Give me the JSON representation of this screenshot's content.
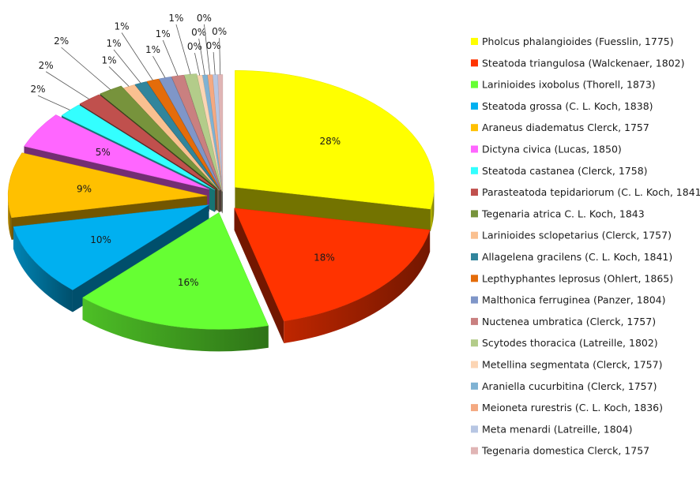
{
  "chart_data": {
    "type": "pie",
    "title": "",
    "legend_position": "right",
    "series": [
      {
        "name": "Pholcus phalangioides  (Fuesslin, 1775)",
        "value": 28,
        "label": "28%",
        "color": "#ffff00"
      },
      {
        "name": "Steatoda triangulosa (Walckenaer, 1802)",
        "value": 18,
        "label": "18%",
        "color": "#ff3300"
      },
      {
        "name": "Larinioides ixobolus (Thorell, 1873)",
        "value": 16,
        "label": "16%",
        "color": "#66ff33"
      },
      {
        "name": "Steatoda grossa (C. L. Koch, 1838)",
        "value": 10,
        "label": "10%",
        "color": "#00b0f0"
      },
      {
        "name": "Araneus diadematus  Clerck, 1757",
        "value": 9,
        "label": "9%",
        "color": "#ffc000"
      },
      {
        "name": "Dictyna civica (Lucas, 1850)",
        "value": 5,
        "label": "5%",
        "color": "#ff66ff"
      },
      {
        "name": "Steatoda castanea (Clerck, 1758)",
        "value": 2,
        "label": "2%",
        "color": "#33ffff"
      },
      {
        "name": "Parasteatoda tepidariorum (C. L. Koch, 1841)",
        "value": 2,
        "label": "2%",
        "color": "#c0504d"
      },
      {
        "name": "Tegenaria atrica C. L. Koch, 1843",
        "value": 2,
        "label": "2%",
        "color": "#77933c"
      },
      {
        "name": "Larinioides sclopetarius (Clerck, 1757)",
        "value": 1,
        "label": "1%",
        "color": "#fac090"
      },
      {
        "name": "Allagelena gracilens (C. L. Koch, 1841)",
        "value": 1,
        "label": "1%",
        "color": "#31859c"
      },
      {
        "name": "Lepthyphantes leprosus (Ohlert, 1865)",
        "value": 1,
        "label": "1%",
        "color": "#e46c0a"
      },
      {
        "name": "Malthonica ferruginea (Panzer, 1804)",
        "value": 1,
        "label": "1%",
        "color": "#7f96c8"
      },
      {
        "name": "Nuctenea umbratica (Clerck, 1757)",
        "value": 1,
        "label": "1%",
        "color": "#c98080"
      },
      {
        "name": "Scytodes thoracica (Latreille, 1802)",
        "value": 1,
        "label": "1%",
        "color": "#b3cc8a"
      },
      {
        "name": "Metellina segmentata (Clerck, 1757)",
        "value": 0.4,
        "label": "0%",
        "color": "#fcd5b4"
      },
      {
        "name": "Araniella cucurbitina (Clerck, 1757)",
        "value": 0.4,
        "label": "0%",
        "color": "#7fb2d3"
      },
      {
        "name": "Meioneta rurestris (C. L. Koch, 1836)",
        "value": 0.4,
        "label": "0%",
        "color": "#f4a981"
      },
      {
        "name": "Meta menardi (Latreille, 1804)",
        "value": 0.4,
        "label": "0%",
        "color": "#b7c6e3"
      },
      {
        "name": "Tegenaria domestica Clerck, 1757",
        "value": 0.4,
        "label": "0%",
        "color": "#e0b5b5"
      }
    ]
  }
}
